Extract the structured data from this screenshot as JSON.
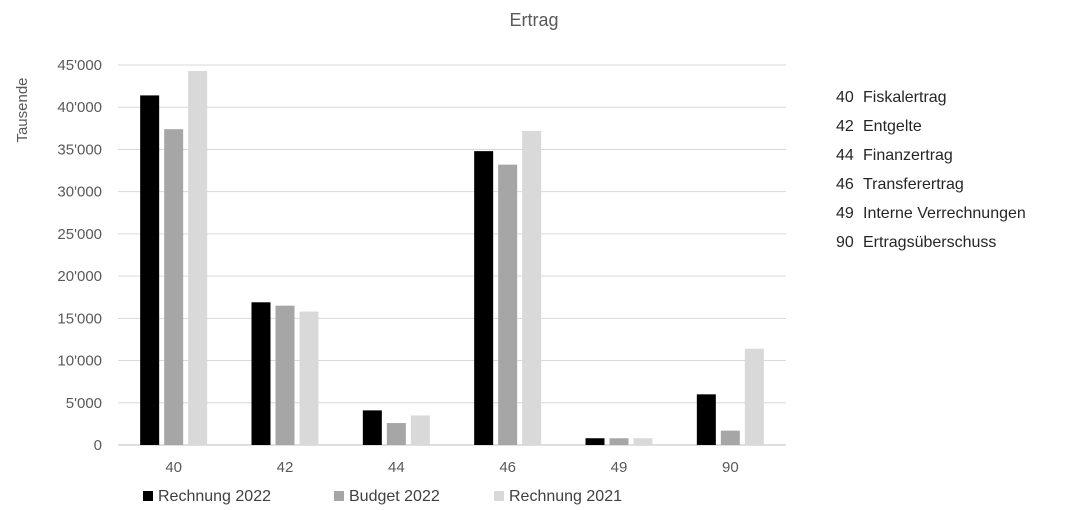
{
  "chart_data": {
    "type": "bar",
    "title": "Ertrag",
    "ylabel": "Tausende",
    "xlabel": "",
    "categories": [
      "40",
      "42",
      "44",
      "46",
      "49",
      "90"
    ],
    "series": [
      {
        "name": "Rechnung 2022",
        "color": "#000000",
        "values": [
          41400,
          16900,
          4100,
          34800,
          800,
          6000
        ]
      },
      {
        "name": "Budget 2022",
        "color": "#a6a6a6",
        "values": [
          37400,
          16500,
          2600,
          33200,
          800,
          1700
        ]
      },
      {
        "name": "Rechnung 2021",
        "color": "#d9d9d9",
        "values": [
          44300,
          15800,
          3500,
          37200,
          800,
          11400
        ]
      }
    ],
    "ylim": [
      0,
      45000
    ],
    "yticks": [
      0,
      5000,
      10000,
      15000,
      20000,
      25000,
      30000,
      35000,
      40000,
      45000
    ],
    "ytick_labels": [
      "0",
      "5'000",
      "10'000",
      "15'000",
      "20'000",
      "25'000",
      "30'000",
      "35'000",
      "40'000",
      "45'000"
    ],
    "grid": true,
    "legend_position": "bottom"
  },
  "category_legend": [
    {
      "code": "40",
      "label": "Fiskalertrag"
    },
    {
      "code": "42",
      "label": "Entgelte"
    },
    {
      "code": "44",
      "label": "Finanzertrag"
    },
    {
      "code": "46",
      "label": "Transferertrag"
    },
    {
      "code": "49",
      "label": "Interne Verrechnungen"
    },
    {
      "code": "90",
      "label": "Ertragsüberschuss"
    }
  ]
}
